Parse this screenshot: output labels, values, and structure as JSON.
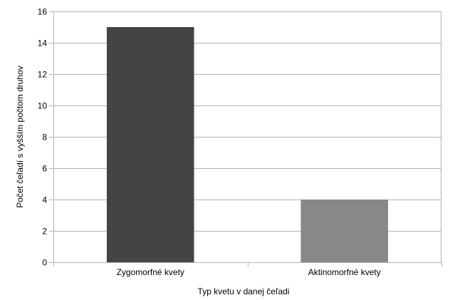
{
  "chart_data": {
    "type": "bar",
    "title": "",
    "xlabel": "Typ kvetu v danej čeľadi",
    "ylabel": "Počet čeľadí s vyšším počtom druhov",
    "categories": [
      "Zygomorfné kvety",
      "Aktinomorfné kvety"
    ],
    "values": [
      15,
      4
    ],
    "bar_colors": [
      "#444444",
      "#888888"
    ],
    "ylim": [
      0,
      16
    ],
    "yticks": [
      "0",
      "2",
      "4",
      "6",
      "8",
      "10",
      "12",
      "14",
      "16"
    ],
    "grid": true,
    "legend": "none"
  }
}
